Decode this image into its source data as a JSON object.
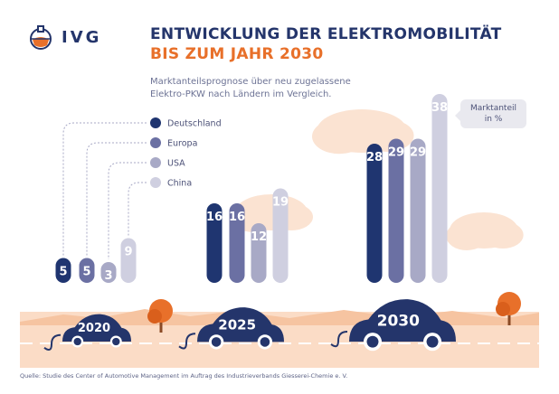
{
  "header": {
    "brand": "IVG",
    "title_line1": "ENTWICKLUNG DER ELEKTROMOBILITÄT",
    "title_line2": "BIS ZUM JAHR 2030",
    "subtitle": "Marktanteilsprognose über neu zugelassene Elektro-PKW nach Ländern im Vergleich."
  },
  "annotation": {
    "text_line1": "Marktanteil",
    "text_line2": "in %"
  },
  "footer": {
    "source": "Quelle: Studie des Center of Automotive Management im Auftrag des Industrieverbands Giesserei-Chemie e. V."
  },
  "colors": {
    "navy": "#24356b",
    "orange": "#e8702a",
    "deutschland": "#1f3570",
    "europa": "#6b70a3",
    "usa": "#a8a9c6",
    "china": "#cfcfe0",
    "cloud": "#fbe3d2",
    "road": "#fbdcc6"
  },
  "chart_data": {
    "type": "bar",
    "categories": [
      "2020",
      "2025",
      "2030"
    ],
    "series": [
      {
        "name": "Deutschland",
        "values": [
          5,
          16,
          28
        ]
      },
      {
        "name": "Europa",
        "values": [
          5,
          16,
          29
        ]
      },
      {
        "name": "USA",
        "values": [
          3,
          12,
          29
        ]
      },
      {
        "name": "China",
        "values": [
          9,
          19,
          38
        ]
      }
    ],
    "ylabel": "Marktanteil in %",
    "legend_position": "left",
    "grid": false
  },
  "icons": {
    "logo": "flask-icon",
    "car": "electric-car-icon",
    "plug": "plug-icon",
    "tree": "tree-icon",
    "cloud": "cloud-icon"
  }
}
